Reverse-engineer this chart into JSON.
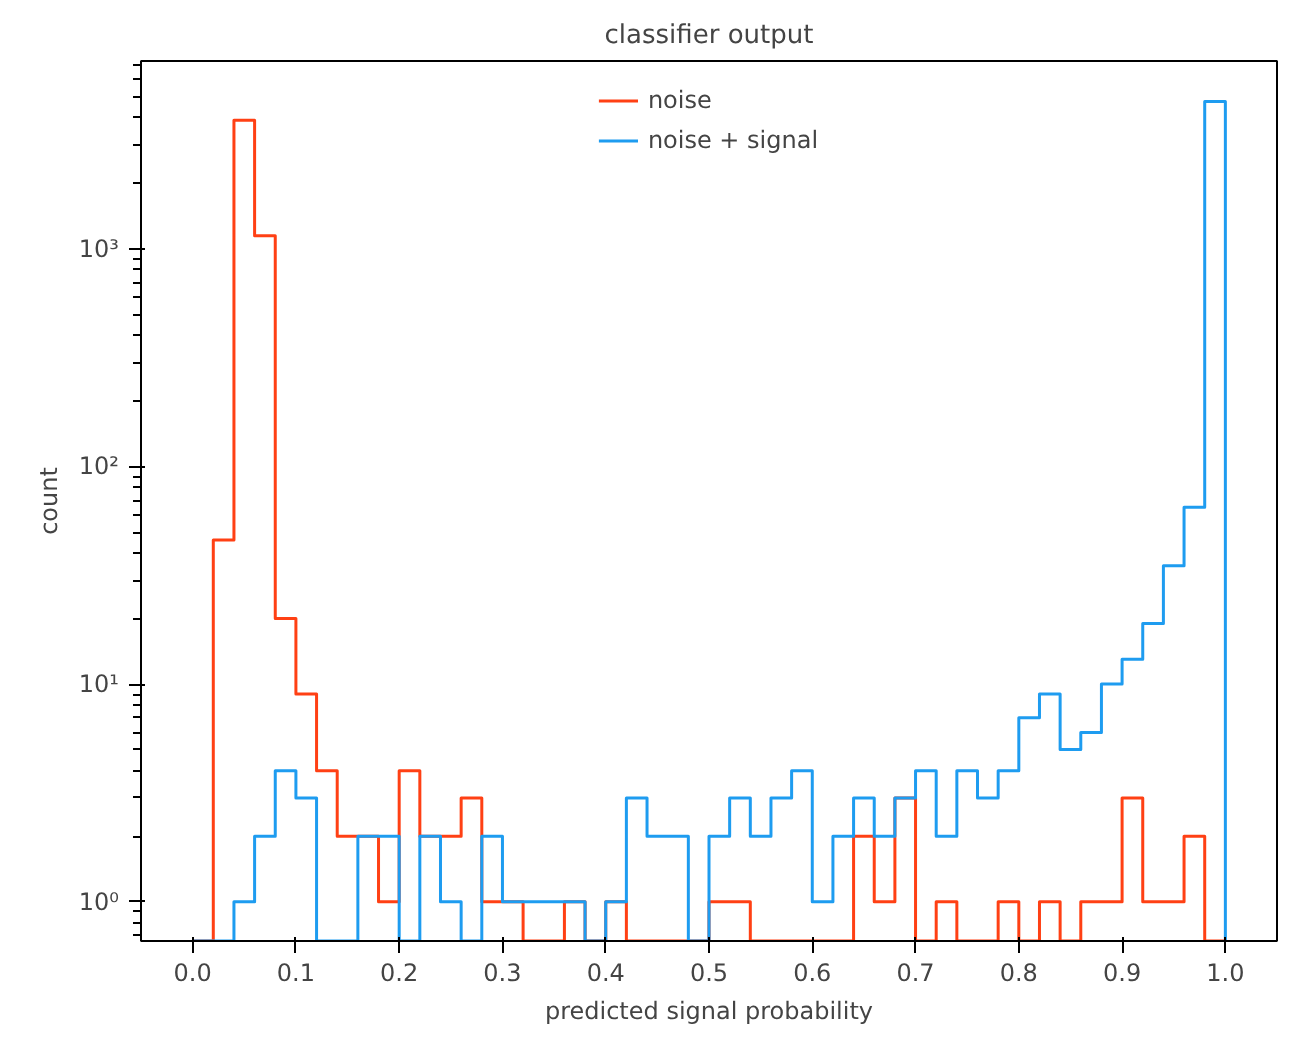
{
  "chart_data": {
    "type": "histogram",
    "title": "classifier output",
    "xlabel": "predicted signal probability",
    "ylabel": "count",
    "bins": [
      0.0,
      0.02,
      0.04,
      0.06,
      0.08,
      0.1,
      0.12,
      0.14,
      0.16,
      0.18,
      0.2,
      0.22,
      0.24,
      0.26,
      0.28,
      0.3,
      0.32,
      0.34,
      0.36,
      0.38,
      0.4,
      0.42,
      0.44,
      0.46,
      0.48,
      0.5,
      0.52,
      0.54,
      0.56,
      0.58,
      0.6,
      0.62,
      0.64,
      0.66,
      0.68,
      0.7,
      0.72,
      0.74,
      0.76,
      0.78,
      0.8,
      0.82,
      0.84,
      0.86,
      0.88,
      0.9,
      0.92,
      0.94,
      0.96,
      0.98,
      1.0
    ],
    "series": [
      {
        "name": "noise",
        "color": "#ff4014",
        "values": [
          null,
          46,
          3900,
          1150,
          20,
          9,
          4,
          2,
          2,
          1,
          4,
          2,
          2,
          3,
          1,
          1,
          null,
          null,
          1,
          null,
          1,
          null,
          null,
          null,
          null,
          1,
          1,
          null,
          null,
          null,
          null,
          null,
          2,
          1,
          3,
          null,
          1,
          null,
          null,
          1,
          null,
          1,
          null,
          1,
          1,
          3,
          1,
          1,
          2,
          null
        ]
      },
      {
        "name": "noise + signal",
        "color": "#1e9cf0",
        "values": [
          null,
          null,
          1,
          2,
          4,
          3,
          null,
          null,
          2,
          2,
          null,
          2,
          1,
          null,
          2,
          1,
          1,
          1,
          1,
          null,
          1,
          3,
          2,
          2,
          null,
          2,
          3,
          2,
          3,
          4,
          1,
          2,
          3,
          2,
          3,
          4,
          2,
          4,
          3,
          4,
          7,
          9,
          5,
          6,
          10,
          13,
          19,
          35,
          65,
          4750
        ]
      }
    ],
    "log": "y",
    "xlim": [
      -0.05,
      1.05
    ],
    "ylim": [
      0.66,
      7300
    ],
    "xticks": [
      {
        "value": 0,
        "label": "0.0"
      },
      0.1,
      0.2,
      0.3,
      0.4,
      0.5,
      0.6,
      0.7,
      0.8,
      0.9,
      {
        "value": 1,
        "label": "1.0"
      }
    ],
    "yticks": [
      {
        "value": 1,
        "label": "10⁰"
      },
      {
        "value": 10,
        "label": "10¹"
      },
      {
        "value": 100,
        "label": "10²"
      },
      {
        "value": 1000,
        "label": "10³"
      }
    ],
    "grid": false,
    "legend": "top"
  }
}
